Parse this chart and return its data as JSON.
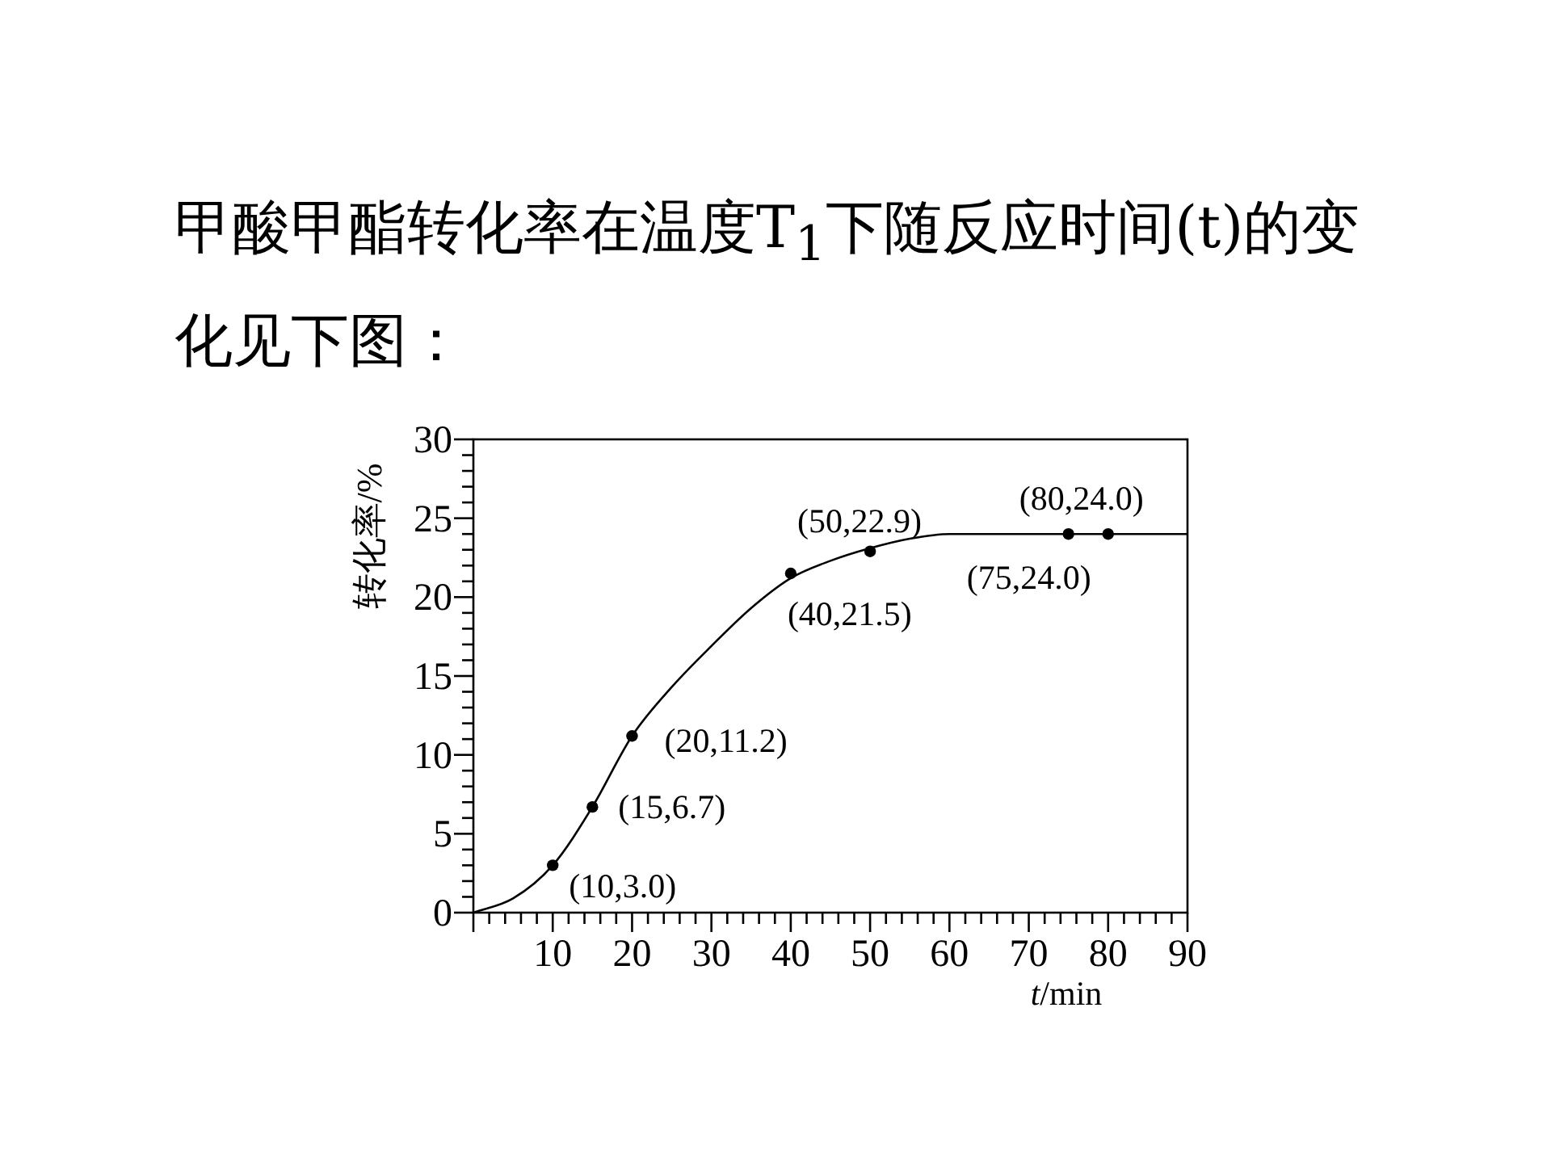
{
  "chart_data": {
    "type": "line",
    "title": "甲酸甲酯转化率在温度T$_{1}$下随反应时间(t)的变化见下图：",
    "xlabel": "*t*/min",
    "ylabel": "转化率/%",
    "xlim": [
      0,
      90
    ],
    "ylim": [
      0,
      30
    ],
    "xticks": [
      {
        "value": 0,
        "label": null
      },
      10,
      20,
      30,
      40,
      50,
      60,
      70,
      80,
      90
    ],
    "yticks": [
      0,
      5,
      10,
      15,
      20,
      25,
      30
    ],
    "series": [
      {
        "color": "#000000",
        "marker": "none",
        "x": [
          0,
          5,
          10,
          15,
          20,
          25,
          30,
          35,
          40,
          45,
          50,
          55,
          60,
          70,
          80,
          90
        ],
        "values": [
          0,
          0.9,
          3.0,
          6.7,
          11.2,
          14.3,
          16.9,
          19.3,
          21.2,
          22.3,
          23.1,
          23.7,
          24.0,
          24.0,
          24.0,
          24.0
        ]
      },
      {
        "type": "scatter",
        "color": "#000000",
        "marker": "circle",
        "x": [
          10,
          15,
          20,
          40,
          50,
          75,
          80
        ],
        "values": [
          3.0,
          6.7,
          11.2,
          21.5,
          22.9,
          24.0,
          24.0
        ]
      }
    ],
    "annotations": [
      {
        "text": "(10,3.0)",
        "x": 10,
        "y": 3.0
      },
      {
        "text": "(15,6.7)",
        "x": 15,
        "y": 6.7
      },
      {
        "text": "(20,11.2)",
        "x": 20,
        "y": 11.2
      },
      {
        "text": "(40,21.5)",
        "x": 40,
        "y": 21.5
      },
      {
        "text": "(50,22.9)",
        "x": 50,
        "y": 22.9
      },
      {
        "text": "(75,24.0)",
        "x": 75,
        "y": 24.0
      },
      {
        "text": "(80,24.0)",
        "x": 80,
        "y": 24.0
      }
    ]
  }
}
